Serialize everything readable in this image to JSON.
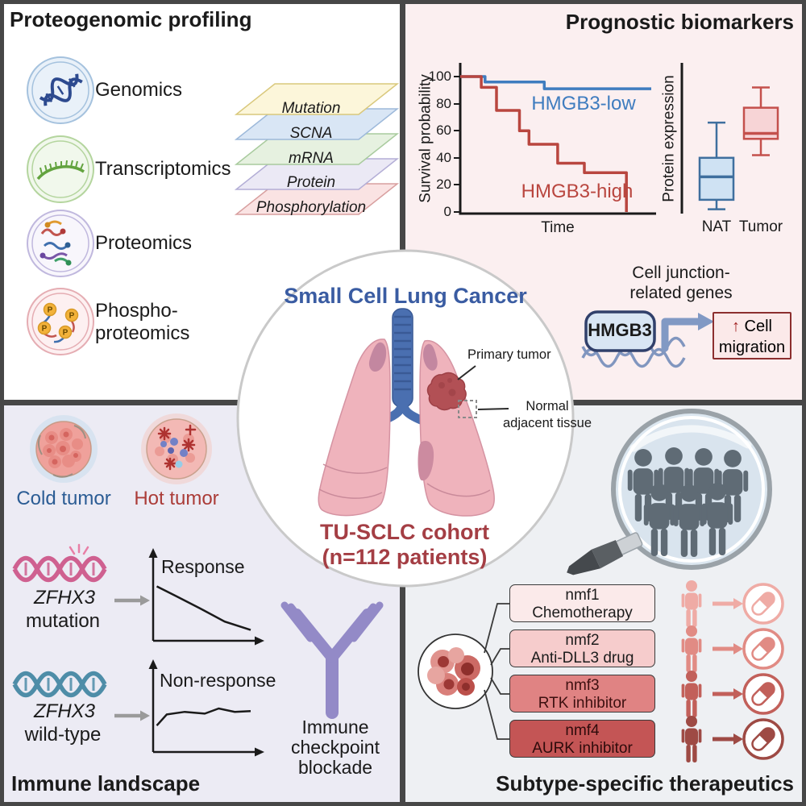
{
  "colors": {
    "frame": "#474747",
    "quad_tl_bg": "#ffffff",
    "quad_tr_bg": "#fbeff0",
    "quad_bl_bg": "#ecebf4",
    "quad_br_bg": "#eef0f3",
    "center_title_blue": "#3a5ca2",
    "cohort_red": "#a43e44",
    "antibody_purple": "#938ac7",
    "helix_mutation_pink": "#cf6090",
    "helix_wildtype_teal": "#4e8da8"
  },
  "panels": {
    "proteogenomic": {
      "title": "Proteogenomic profiling",
      "phospho_p": "P",
      "items": [
        {
          "label": "Genomics"
        },
        {
          "label": "Transcriptomics"
        },
        {
          "label": "Proteomics"
        },
        {
          "label": "Phospho-\nproteomics"
        }
      ],
      "layers": [
        {
          "label": "Mutation",
          "fill": "#fcf6da",
          "stroke": "#d9c87c"
        },
        {
          "label": "SCNA",
          "fill": "#d9e6f5",
          "stroke": "#9db9da"
        },
        {
          "label": "mRNA",
          "fill": "#e6f1e0",
          "stroke": "#a9cb9e"
        },
        {
          "label": "Protein",
          "fill": "#ebe9f5",
          "stroke": "#b3aed6"
        },
        {
          "label": "Phosphorylation",
          "fill": "#fae3e3",
          "stroke": "#d89f9f"
        }
      ]
    },
    "prognostic": {
      "title": "Prognostic biomarkers",
      "km": {
        "ylabel": "Survival probability",
        "xlabel": "Time",
        "yticks": [
          "100",
          "80",
          "60",
          "40",
          "20",
          "0"
        ],
        "series": [
          {
            "name": "HMGB3-low",
            "color": "#3f7cbf",
            "points": [
              [
                0,
                100
              ],
              [
                13,
                100
              ],
              [
                13,
                96
              ],
              [
                44,
                96
              ],
              [
                44,
                91
              ],
              [
                100,
                91
              ]
            ]
          },
          {
            "name": "HMGB3-high",
            "color": "#b9463f",
            "points": [
              [
                0,
                100
              ],
              [
                11,
                100
              ],
              [
                11,
                92
              ],
              [
                19,
                92
              ],
              [
                19,
                75
              ],
              [
                31,
                75
              ],
              [
                31,
                60
              ],
              [
                36,
                60
              ],
              [
                36,
                50
              ],
              [
                51,
                50
              ],
              [
                51,
                36
              ],
              [
                65,
                36
              ],
              [
                65,
                29
              ],
              [
                87,
                29
              ],
              [
                87,
                0
              ]
            ]
          }
        ]
      },
      "boxplot": {
        "ylabel": "Protein expression",
        "categories": [
          "NAT",
          "Tumor"
        ],
        "boxes": [
          {
            "label": "NAT",
            "low": 2,
            "q1": 9,
            "median": 26,
            "q3": 40,
            "high": 66,
            "fill": "#cfe2f3",
            "stroke": "#3f6f9e"
          },
          {
            "label": "Tumor",
            "low": 42,
            "q1": 54,
            "median": 58,
            "q3": 77,
            "high": 92,
            "fill": "#f7d4d6",
            "stroke": "#c4504c"
          }
        ]
      },
      "celljunction": {
        "caption": "Cell junction-\nrelated genes",
        "gene": "HMGB3",
        "arrow_glyph": "↑",
        "effect_line1": "Cell",
        "effect_line2": "migration"
      }
    },
    "center": {
      "title": "Small Cell Lung Cancer",
      "primary_label": "Primary tumor",
      "normal_label": "Normal\nadjacent tissue",
      "cohort": "TU-SCLC cohort\n(n=112 patients)"
    },
    "immune": {
      "title": "Immune landscape",
      "cold_label": "Cold tumor",
      "hot_label": "Hot tumor",
      "rows": [
        {
          "gene": "ZFHX3",
          "state": "mutation",
          "graph_label": "Response",
          "curve": [
            [
              0.02,
              0.38
            ],
            [
              0.22,
              0.5
            ],
            [
              0.45,
              0.64
            ],
            [
              0.7,
              0.8
            ],
            [
              0.96,
              0.9
            ]
          ]
        },
        {
          "gene": "ZFHX3",
          "state": "wild-type",
          "graph_label": "Non-response",
          "curve": [
            [
              0.02,
              0.7
            ],
            [
              0.12,
              0.57
            ],
            [
              0.3,
              0.54
            ],
            [
              0.5,
              0.56
            ],
            [
              0.64,
              0.5
            ],
            [
              0.8,
              0.54
            ],
            [
              0.96,
              0.53
            ]
          ]
        }
      ],
      "icb_label": "Immune\ncheckpoint\nblockade"
    },
    "therapeutics": {
      "title": "Subtype-specific therapeutics",
      "subtypes": [
        {
          "name": "nmf1",
          "therapy": "Chemotherapy",
          "box_fill": "#fbeaea",
          "accent": "#efaba5",
          "text": "#1c1c1c"
        },
        {
          "name": "nmf2",
          "therapy": "Anti-DLL3 drug",
          "box_fill": "#f6cccc",
          "accent": "#e18b84",
          "text": "#1c1c1c"
        },
        {
          "name": "nmf3",
          "therapy": "RTK inhibitor",
          "box_fill": "#e08383",
          "accent": "#c2605a",
          "text": "#3d1010"
        },
        {
          "name": "nmf4",
          "therapy": "AURK inhibitor",
          "box_fill": "#c45555",
          "accent": "#9e4a44",
          "text": "#2e0b0b"
        }
      ]
    }
  }
}
